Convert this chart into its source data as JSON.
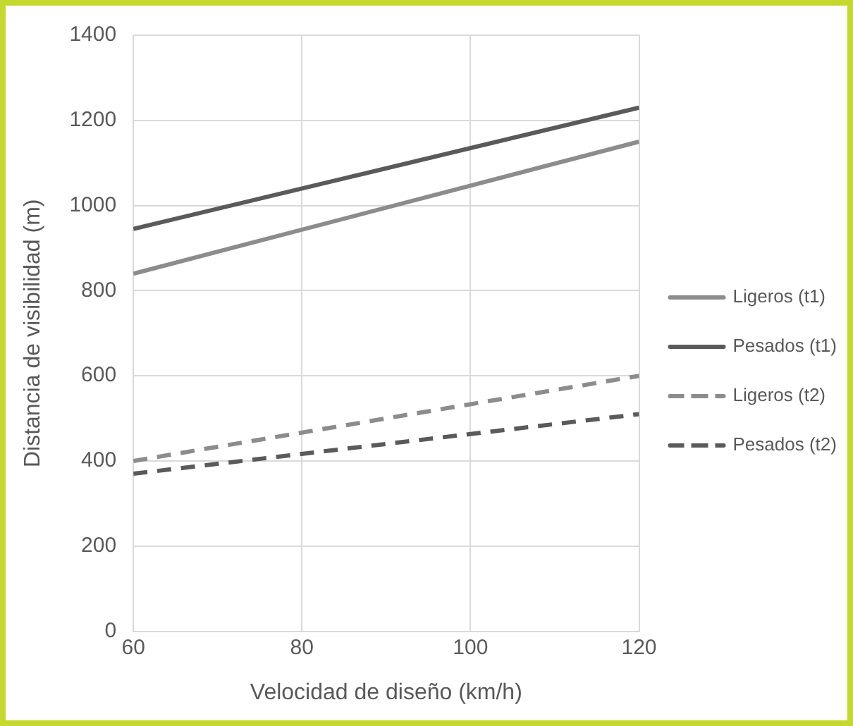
{
  "chart_data": {
    "type": "line",
    "xlabel": "Velocidad de diseño (km/h)",
    "ylabel": "Distancia de visibilidad (m)",
    "x": [
      60,
      120
    ],
    "xlim": [
      60,
      120
    ],
    "xticks": [
      60,
      80,
      100,
      120
    ],
    "ylim": [
      0,
      1400
    ],
    "yticks": [
      0,
      200,
      400,
      600,
      800,
      1000,
      1200,
      1400
    ],
    "grid": true,
    "legend": "right",
    "marker": "none",
    "series": [
      {
        "name": "Ligeros (t1)",
        "color": "#8c8c8c",
        "values": [
          840,
          1150
        ],
        "line_style": "solid"
      },
      {
        "name": "Pesados (t1)",
        "color": "#5a5a5a",
        "values": [
          945,
          1230
        ],
        "line_style": "solid"
      },
      {
        "name": "Ligeros (t2)",
        "color": "#8c8c8c",
        "values": [
          400,
          600
        ],
        "line_style": "dashed"
      },
      {
        "name": "Pesados (t2)",
        "color": "#5a5a5a",
        "values": [
          370,
          510
        ],
        "line_style": "dashed"
      }
    ]
  }
}
